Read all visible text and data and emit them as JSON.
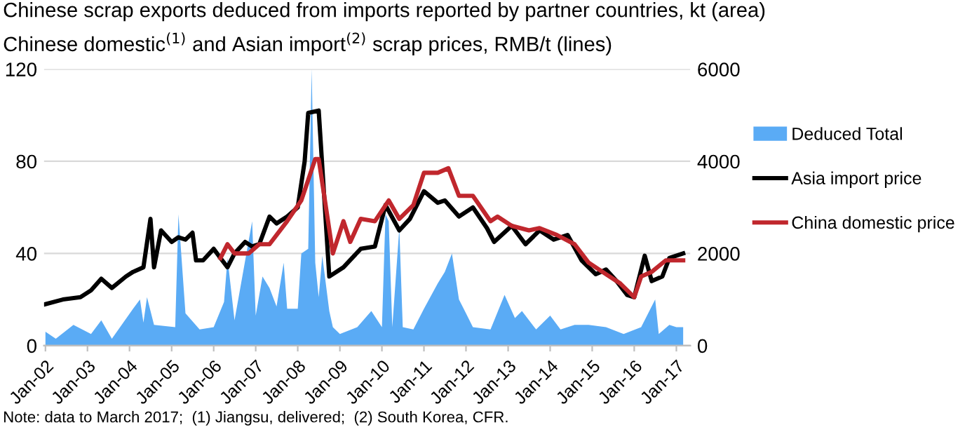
{
  "chart_data": {
    "type": "area",
    "title": "Chinese scrap exports deduced from imports reported by partner countries, kt (area)",
    "subtitle": "Chinese domestic$^{(1)}$ and Asian import$^{(2)}$ scrap prices, RMB/t (lines)",
    "annotations": [
      "Note: data to March 2017;  (1) Jiangsu, delivered;  (2) South Korea, CFR."
    ],
    "series": [
      {
        "name": "Deduced Total",
        "color": "#5aabf5",
        "x": [
          "2002-01",
          "2002-04",
          "2002-09",
          "2003-02",
          "2003-05",
          "2003-08",
          "2004-02",
          "2004-04",
          "2004-05",
          "2004-06",
          "2004-08",
          "2005-02",
          "2005-03",
          "2005-05",
          "2005-09",
          "2006-01",
          "2006-04",
          "2006-05",
          "2006-07",
          "2006-12",
          "2007-01",
          "2007-03",
          "2007-05",
          "2007-07",
          "2007-09",
          "2007-10",
          "2008-01",
          "2008-02",
          "2008-04",
          "2008-05",
          "2008-06",
          "2008-07",
          "2008-08",
          "2008-10",
          "2008-11",
          "2009-01",
          "2009-06",
          "2009-10",
          "2010-01",
          "2010-02",
          "2010-03",
          "2010-04",
          "2010-06",
          "2010-07",
          "2010-10",
          "2011-01",
          "2011-05",
          "2011-07",
          "2011-09",
          "2011-11",
          "2012-01",
          "2012-03",
          "2012-08",
          "2012-12",
          "2013-03",
          "2013-05",
          "2013-09",
          "2014-01",
          "2014-04",
          "2014-08",
          "2014-12",
          "2015-05",
          "2015-10",
          "2016-03",
          "2016-07",
          "2016-08",
          "2016-11",
          "2017-01",
          "2017-03"
        ],
        "values": [
          6,
          3,
          9,
          5,
          11,
          3,
          16,
          20,
          10,
          21,
          9,
          8,
          57,
          14,
          7,
          8,
          19,
          38,
          11,
          54,
          13,
          30,
          25,
          17,
          36,
          16,
          16,
          40,
          42,
          120,
          36,
          21,
          39,
          15,
          8,
          5,
          8,
          15,
          8,
          57,
          54,
          8,
          51,
          8,
          7,
          16,
          27,
          32,
          40,
          20,
          14,
          8,
          7,
          22,
          12,
          15,
          7,
          13,
          7,
          9,
          9,
          8,
          5,
          8,
          20,
          5,
          9,
          8,
          8
        ]
      },
      {
        "name": "Asia import price",
        "type": "line",
        "axis": "y2",
        "color": "#000000",
        "x": [
          "2002-01",
          "2002-06",
          "2002-11",
          "2003-02",
          "2003-05",
          "2003-08",
          "2003-12",
          "2004-02",
          "2004-05",
          "2004-07",
          "2004-08",
          "2004-10",
          "2005-01",
          "2005-03",
          "2005-05",
          "2005-07",
          "2005-08",
          "2005-10",
          "2006-01",
          "2006-03",
          "2006-05",
          "2006-07",
          "2006-10",
          "2006-12",
          "2007-02",
          "2007-05",
          "2007-07",
          "2007-10",
          "2008-01",
          "2008-03",
          "2008-04",
          "2008-07",
          "2008-10",
          "2009-02",
          "2009-07",
          "2009-11",
          "2010-02",
          "2010-06",
          "2010-09",
          "2011-01",
          "2011-05",
          "2011-07",
          "2011-11",
          "2012-03",
          "2012-07",
          "2012-09",
          "2013-02",
          "2013-06",
          "2013-10",
          "2014-02",
          "2014-06",
          "2014-10",
          "2015-02",
          "2015-05",
          "2015-08",
          "2015-11",
          "2016-01",
          "2016-04",
          "2016-06",
          "2016-09",
          "2016-11",
          "2017-03"
        ],
        "values": [
          900,
          1000,
          1050,
          1200,
          1450,
          1250,
          1500,
          1600,
          1700,
          2750,
          1700,
          2500,
          2250,
          2350,
          2300,
          2450,
          1850,
          1850,
          2100,
          1900,
          1700,
          2000,
          2250,
          2150,
          2200,
          2800,
          2650,
          2800,
          3000,
          4000,
          5050,
          5100,
          1500,
          1700,
          2100,
          2150,
          3050,
          2500,
          2750,
          3350,
          3100,
          3150,
          2800,
          3000,
          2550,
          2250,
          2600,
          2200,
          2500,
          2300,
          2400,
          1850,
          1550,
          1650,
          1400,
          1100,
          1050,
          1950,
          1400,
          1500,
          1900,
          2000
        ]
      },
      {
        "name": "China domestic price",
        "type": "line",
        "axis": "y2",
        "color": "#c0272d",
        "x": [
          "2006-03",
          "2006-05",
          "2006-07",
          "2006-11",
          "2007-02",
          "2007-05",
          "2007-07",
          "2007-10",
          "2008-02",
          "2008-06",
          "2008-07",
          "2008-11",
          "2009-02",
          "2009-04",
          "2009-07",
          "2009-11",
          "2010-03",
          "2010-06",
          "2010-10",
          "2011-01",
          "2011-05",
          "2011-08",
          "2011-11",
          "2012-03",
          "2012-08",
          "2012-10",
          "2013-02",
          "2013-07",
          "2013-10",
          "2014-03",
          "2014-08",
          "2014-12",
          "2015-05",
          "2015-09",
          "2016-01",
          "2016-03",
          "2016-06",
          "2016-10",
          "2017-03"
        ],
        "values": [
          1900,
          2200,
          2000,
          2000,
          2200,
          2200,
          2400,
          2700,
          3150,
          4050,
          4050,
          2000,
          2700,
          2250,
          2750,
          2700,
          3150,
          2750,
          3050,
          3750,
          3750,
          3850,
          3250,
          3250,
          2700,
          2800,
          2600,
          2500,
          2550,
          2400,
          2200,
          1800,
          1550,
          1350,
          1050,
          1500,
          1600,
          1850,
          1850
        ]
      }
    ],
    "xlim": [
      "2001-12-20",
      "2017-05-01"
    ],
    "xticks": [
      {
        "value": "2002-01",
        "label": "Jan-02"
      },
      {
        "value": "2003-01",
        "label": "Jan-03"
      },
      {
        "value": "2004-01",
        "label": "Jan-04"
      },
      {
        "value": "2005-01",
        "label": "Jan-05"
      },
      {
        "value": "2006-01",
        "label": "Jan-06"
      },
      {
        "value": "2007-01",
        "label": "Jan-07"
      },
      {
        "value": "2008-01",
        "label": "Jan-08"
      },
      {
        "value": "2009-01",
        "label": "Jan-09"
      },
      {
        "value": "2010-01",
        "label": "Jan-10"
      },
      {
        "value": "2011-01",
        "label": "Jan-11"
      },
      {
        "value": "2012-01",
        "label": "Jan-12"
      },
      {
        "value": "2013-01",
        "label": "Jan-13"
      },
      {
        "value": "2014-01",
        "label": "Jan-14"
      },
      {
        "value": "2015-01",
        "label": "Jan-15"
      },
      {
        "value": "2016-01",
        "label": "Jan-16"
      },
      {
        "value": "2017-01",
        "label": "Jan-17"
      }
    ],
    "ylim": [
      0,
      120
    ],
    "yticks": [
      0,
      40,
      80,
      120
    ],
    "y2lim": [
      0,
      6000
    ],
    "y2ticks": [
      0,
      2000,
      4000,
      6000
    ],
    "grid": "y",
    "legend": "right"
  }
}
